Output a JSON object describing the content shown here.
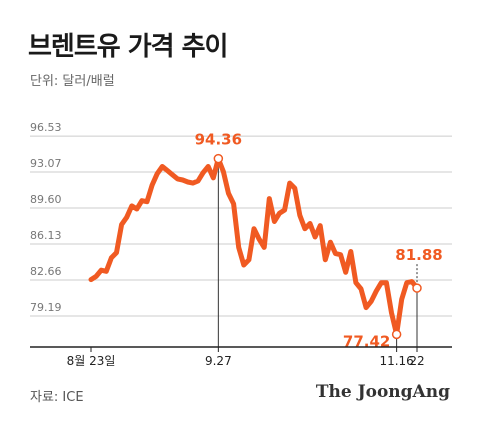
{
  "header": {
    "title": "브렌트유 가격 추이",
    "unit": "단위: 달러/배럴"
  },
  "footer": {
    "source": "자료: ICE",
    "logo": "The JoongAng"
  },
  "colors": {
    "line": "#f05a22",
    "grid": "#cccccc",
    "axis": "#222222"
  },
  "chart_data": {
    "type": "line",
    "title": "브렌트유 가격 추이",
    "ylabel": "단위: 달러/배럴",
    "xlabel": "",
    "ylim": [
      76.2,
      97.5
    ],
    "grid": true,
    "y_ticks": [
      96.53,
      93.07,
      89.6,
      86.13,
      82.66,
      79.19
    ],
    "x_ticks": [
      {
        "label": "8월 23일",
        "x": 0
      },
      {
        "label": "9.27",
        "x": 25
      },
      {
        "label": "11.16",
        "x": 60
      },
      {
        "label": "22",
        "x": 64
      }
    ],
    "series": [
      {
        "values": [
          {
            "x": 0,
            "y": 82.7
          },
          {
            "x": 1,
            "y": 83.0
          },
          {
            "x": 2,
            "y": 83.6
          },
          {
            "x": 3,
            "y": 83.5
          },
          {
            "x": 4,
            "y": 84.8
          },
          {
            "x": 5,
            "y": 85.3
          },
          {
            "x": 6,
            "y": 88.0
          },
          {
            "x": 7,
            "y": 88.7
          },
          {
            "x": 8,
            "y": 89.8
          },
          {
            "x": 9,
            "y": 89.5
          },
          {
            "x": 10,
            "y": 90.3
          },
          {
            "x": 11,
            "y": 90.2
          },
          {
            "x": 12,
            "y": 91.8
          },
          {
            "x": 13,
            "y": 92.9
          },
          {
            "x": 14,
            "y": 93.6
          },
          {
            "x": 15,
            "y": 93.2
          },
          {
            "x": 16,
            "y": 92.8
          },
          {
            "x": 17,
            "y": 92.4
          },
          {
            "x": 18,
            "y": 92.3
          },
          {
            "x": 19,
            "y": 92.1
          },
          {
            "x": 20,
            "y": 92.0
          },
          {
            "x": 21,
            "y": 92.2
          },
          {
            "x": 22,
            "y": 93.0
          },
          {
            "x": 23,
            "y": 93.6
          },
          {
            "x": 24,
            "y": 92.5
          },
          {
            "x": 25,
            "y": 94.36
          },
          {
            "x": 26,
            "y": 93.1
          },
          {
            "x": 27,
            "y": 91.0
          },
          {
            "x": 28,
            "y": 90.0
          },
          {
            "x": 29,
            "y": 85.8
          },
          {
            "x": 30,
            "y": 84.1
          },
          {
            "x": 31,
            "y": 84.6
          },
          {
            "x": 32,
            "y": 87.6
          },
          {
            "x": 33,
            "y": 86.6
          },
          {
            "x": 34,
            "y": 85.8
          },
          {
            "x": 35,
            "y": 90.5
          },
          {
            "x": 36,
            "y": 88.3
          },
          {
            "x": 37,
            "y": 89.1
          },
          {
            "x": 38,
            "y": 89.4
          },
          {
            "x": 39,
            "y": 92.0
          },
          {
            "x": 40,
            "y": 91.5
          },
          {
            "x": 41,
            "y": 88.9
          },
          {
            "x": 42,
            "y": 87.6
          },
          {
            "x": 43,
            "y": 88.1
          },
          {
            "x": 44,
            "y": 86.8
          },
          {
            "x": 45,
            "y": 87.9
          },
          {
            "x": 46,
            "y": 84.6
          },
          {
            "x": 47,
            "y": 86.3
          },
          {
            "x": 48,
            "y": 85.2
          },
          {
            "x": 49,
            "y": 85.1
          },
          {
            "x": 50,
            "y": 83.4
          },
          {
            "x": 51,
            "y": 85.4
          },
          {
            "x": 52,
            "y": 82.4
          },
          {
            "x": 53,
            "y": 81.8
          },
          {
            "x": 54,
            "y": 80.0
          },
          {
            "x": 55,
            "y": 80.6
          },
          {
            "x": 56,
            "y": 81.6
          },
          {
            "x": 57,
            "y": 82.4
          },
          {
            "x": 58,
            "y": 82.4
          },
          {
            "x": 59,
            "y": 79.5
          },
          {
            "x": 60,
            "y": 77.42
          },
          {
            "x": 61,
            "y": 80.8
          },
          {
            "x": 62,
            "y": 82.4
          },
          {
            "x": 63,
            "y": 82.5
          },
          {
            "x": 64,
            "y": 81.88
          }
        ]
      }
    ],
    "annotations": [
      {
        "x": 25,
        "y": 94.36,
        "text": "94.36"
      },
      {
        "x": 60,
        "y": 77.42,
        "text": "77.42"
      },
      {
        "x": 64,
        "y": 81.88,
        "text": "81.88"
      }
    ]
  }
}
